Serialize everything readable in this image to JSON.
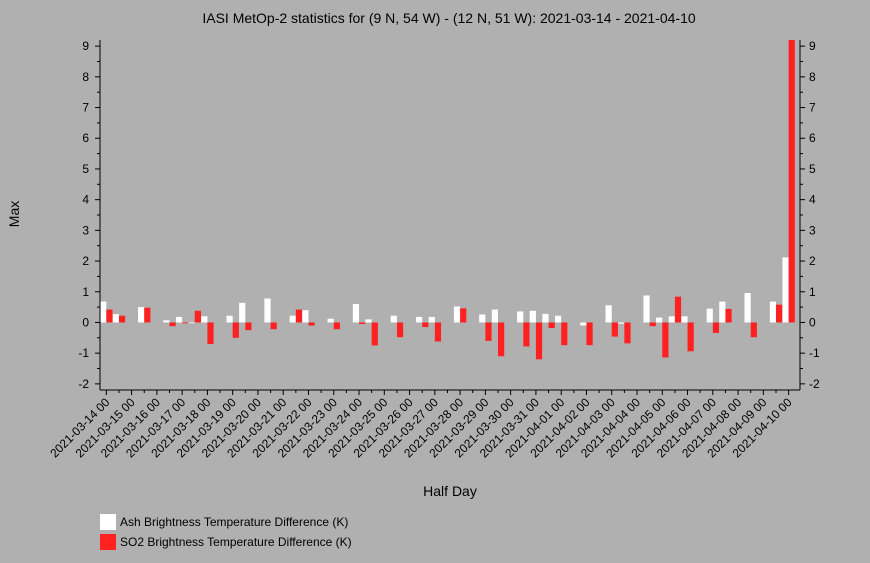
{
  "chart_data": {
    "type": "bar",
    "title": "IASI MetOp-2 statistics for (9 N, 54 W) - (12 N, 51 W): 2021-03-14 - 2021-04-10",
    "xlabel": "Half Day",
    "ylabel": "Max",
    "ylim": [
      -2.2,
      9.2
    ],
    "yticks": [
      -2,
      -1,
      0,
      1,
      2,
      3,
      4,
      5,
      6,
      7,
      8,
      9
    ],
    "xlim": [
      -0.5,
      54.9
    ],
    "xtick_labels": [
      "2021-03-14 00",
      "2021-03-15 00",
      "2021-03-16 00",
      "2021-03-17 00",
      "2021-03-18 00",
      "2021-03-19 00",
      "2021-03-20 00",
      "2021-03-21 00",
      "2021-03-22 00",
      "2021-03-23 00",
      "2021-03-24 00",
      "2021-03-25 00",
      "2021-03-26 00",
      "2021-03-27 00",
      "2021-03-28 00",
      "2021-03-29 00",
      "2021-03-30 00",
      "2021-03-31 00",
      "2021-04-01 00",
      "2021-04-02 00",
      "2021-04-03 00",
      "2021-04-04 00",
      "2021-04-05 00",
      "2021-04-06 00",
      "2021-04-07 00",
      "2021-04-08 00",
      "2021-04-09 00",
      "2021-04-10 00"
    ],
    "series": [
      {
        "name": "Ash Brightness Temperature Difference (K)",
        "color": "#ffffff",
        "values": [
          0.68,
          0.27,
          null,
          0.5,
          null,
          0.07,
          0.18,
          0.0,
          0.2,
          null,
          0.22,
          0.64,
          null,
          0.78,
          null,
          0.22,
          0.4,
          null,
          0.12,
          null,
          0.6,
          0.1,
          null,
          0.22,
          null,
          0.18,
          0.18,
          null,
          0.52,
          null,
          0.26,
          0.42,
          null,
          0.36,
          0.38,
          0.28,
          0.22,
          null,
          -0.1,
          null,
          0.56,
          -0.04,
          null,
          0.88,
          0.16,
          0.2,
          0.2,
          null,
          0.45,
          0.68,
          null,
          0.96,
          null,
          0.68,
          2.12
        ]
      },
      {
        "name": "SO2 Brightness Temperature Difference (K)",
        "color": "#ff2020",
        "values": [
          0.42,
          0.22,
          null,
          0.48,
          null,
          -0.12,
          0.0,
          0.38,
          -0.7,
          null,
          -0.5,
          -0.25,
          null,
          -0.22,
          null,
          0.42,
          -0.1,
          null,
          -0.22,
          null,
          -0.05,
          -0.75,
          null,
          -0.48,
          null,
          -0.15,
          -0.62,
          null,
          0.46,
          null,
          -0.6,
          -1.1,
          null,
          -0.78,
          -1.2,
          -0.18,
          -0.74,
          null,
          -0.74,
          null,
          -0.46,
          -0.68,
          null,
          -0.12,
          -1.14,
          0.84,
          -0.94,
          null,
          -0.34,
          0.44,
          null,
          -0.48,
          null,
          0.58,
          9.2
        ]
      }
    ],
    "grid": false,
    "legend_position": "bottom-left"
  }
}
